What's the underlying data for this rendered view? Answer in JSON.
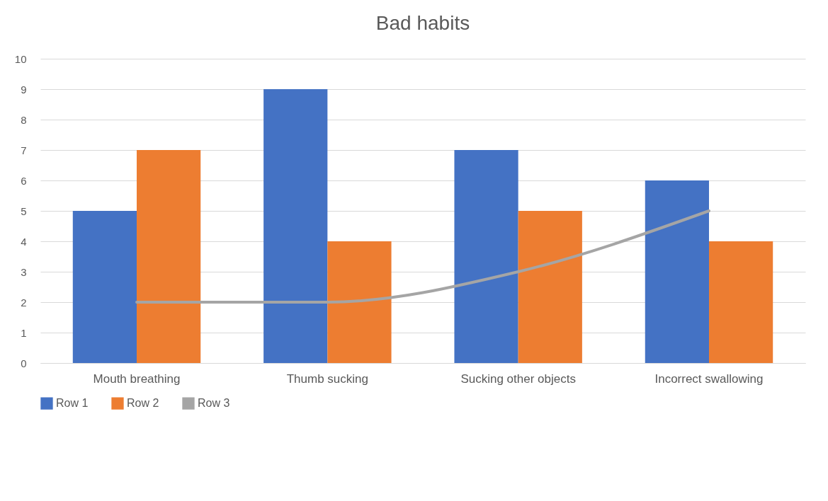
{
  "chart_data": {
    "type": "bar",
    "title": "Bad habits",
    "categories": [
      "Mouth breathing",
      "Thumb sucking",
      "Sucking other objects",
      "Incorrect swallowing"
    ],
    "series": [
      {
        "name": "Row 1",
        "color": "#4472c4",
        "values": [
          5,
          9,
          7,
          6
        ]
      },
      {
        "name": "Row 2",
        "color": "#ed7d31",
        "values": [
          7,
          4,
          5,
          4
        ]
      },
      {
        "name": "Row 3",
        "color": "#a5a5a5",
        "type": "line",
        "values": [
          2,
          2,
          3,
          5
        ]
      }
    ],
    "ylim": [
      0,
      10
    ],
    "yticks": [
      0,
      1,
      2,
      3,
      4,
      5,
      6,
      7,
      8,
      9,
      10
    ],
    "grid": "y",
    "legend": "bottom"
  }
}
